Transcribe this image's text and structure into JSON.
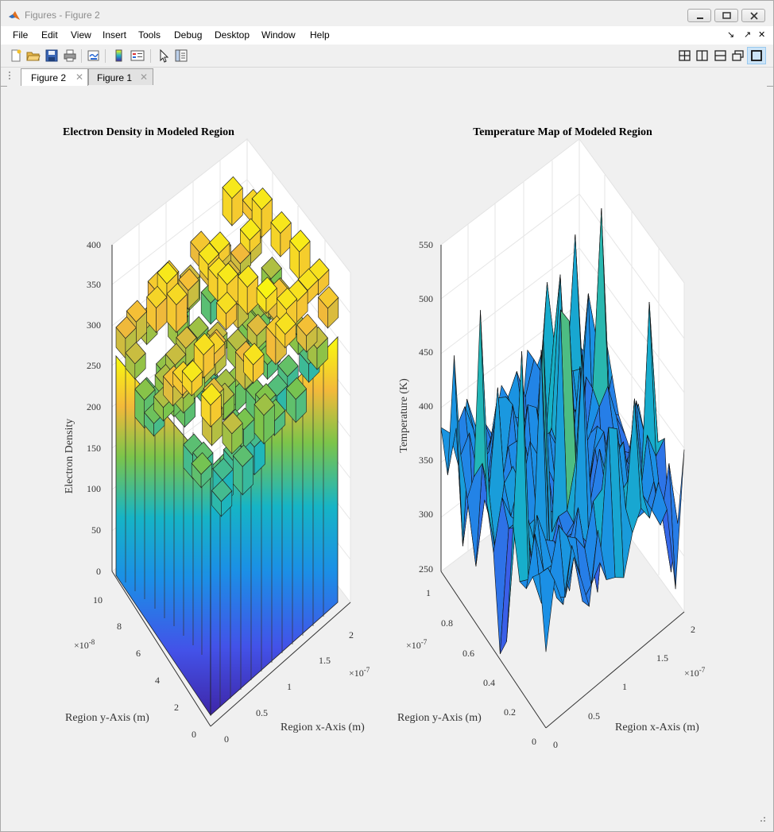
{
  "window": {
    "title": "Figures - Figure 2",
    "buttons": [
      "minimize",
      "restore",
      "close"
    ]
  },
  "menu": {
    "items": [
      "File",
      "Edit",
      "View",
      "Insert",
      "Tools",
      "Debug",
      "Desktop",
      "Window",
      "Help"
    ],
    "right_icons": [
      "↘",
      "↗",
      "✕"
    ]
  },
  "toolbar": {
    "tools": [
      "new-figure-icon",
      "open-icon",
      "save-icon",
      "print-icon",
      "link-icon",
      "colorbar-icon",
      "legend-icon",
      "pointer-icon",
      "property-inspector-icon"
    ],
    "layout_tools": [
      "tile-grid-icon",
      "tile-columns-icon",
      "tile-rows-icon",
      "float-icon",
      "maximize-icon"
    ]
  },
  "tabs": [
    {
      "label": "Figure 2",
      "active": true
    },
    {
      "label": "Figure 1",
      "active": false
    }
  ],
  "colors": {
    "parula_low": "#3e26a8",
    "parula_mid": "#21b1c8",
    "parula_high": "#f9fb0e",
    "axes_grid": "#dcdcdc"
  },
  "chart_data": [
    {
      "type": "bar3",
      "title": "Electron Density in Modeled Region",
      "xlabel": "Region x-Axis (m)",
      "ylabel": "Region y-Axis (m)",
      "zlabel": "Electron Density",
      "x_ticks": [
        "0",
        "0.5",
        "1",
        "1.5",
        "2"
      ],
      "x_exponent": "×10",
      "x_exponent_power": "-7",
      "y_ticks": [
        "0",
        "2",
        "4",
        "6",
        "8",
        "10"
      ],
      "y_exponent": "×10",
      "y_exponent_power": "-8",
      "z_ticks": [
        "0",
        "50",
        "100",
        "150",
        "200",
        "250",
        "300",
        "350",
        "400"
      ],
      "zlim": [
        0,
        400
      ],
      "xlim": [
        0,
        2e-07
      ],
      "ylim": [
        0,
        1e-07
      ],
      "grid": "on",
      "colormap": "parula",
      "values_approx": {
        "min": 250,
        "max": 395,
        "typical": [
          260,
          300,
          330,
          360,
          390
        ]
      }
    },
    {
      "type": "surface",
      "title": "Temperature Map of Modeled Region",
      "xlabel": "Region x-Axis (m)",
      "ylabel": "Region y-Axis (m)",
      "zlabel": "Temperature (K)",
      "x_ticks": [
        "0",
        "0.5",
        "1",
        "1.5",
        "2"
      ],
      "x_exponent": "×10",
      "x_exponent_power": "-7",
      "y_ticks": [
        "0",
        "0.2",
        "0.4",
        "0.6",
        "0.8",
        "1"
      ],
      "y_exponent": "×10",
      "y_exponent_power": "-7",
      "z_ticks": [
        "250",
        "300",
        "350",
        "400",
        "450",
        "500",
        "550"
      ],
      "zlim": [
        250,
        550
      ],
      "xlim": [
        0,
        2e-07
      ],
      "ylim": [
        0,
        1e-07
      ],
      "grid": "on",
      "colormap": "parula",
      "values_approx": {
        "min": 255,
        "max": 545,
        "typical": [
          330,
          360,
          380,
          420,
          470
        ]
      }
    }
  ]
}
